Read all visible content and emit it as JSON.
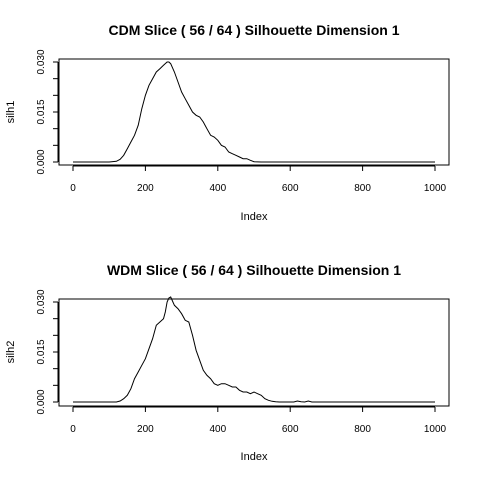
{
  "chart_data": [
    {
      "type": "line",
      "title": "CDM Slice ( 56 / 64 )  Silhouette Dimension 1",
      "xlabel": "Index",
      "ylabel": "silh1",
      "xlim": [
        0,
        1000
      ],
      "ylim": [
        0,
        0.03
      ],
      "xticks": [
        "0",
        "200",
        "400",
        "600",
        "800",
        "1000"
      ],
      "yticks": [
        "0.000",
        "0.015",
        "0.030"
      ],
      "x": [
        0,
        100,
        120,
        130,
        140,
        150,
        160,
        170,
        180,
        190,
        200,
        210,
        220,
        230,
        240,
        250,
        260,
        265,
        270,
        280,
        290,
        300,
        310,
        320,
        330,
        340,
        350,
        360,
        370,
        380,
        390,
        400,
        410,
        420,
        430,
        440,
        450,
        460,
        470,
        480,
        490,
        500,
        520,
        600,
        700,
        800,
        900,
        1000
      ],
      "y": [
        0,
        0,
        0.0002,
        0.0008,
        0.002,
        0.004,
        0.006,
        0.008,
        0.011,
        0.016,
        0.02,
        0.023,
        0.025,
        0.027,
        0.028,
        0.029,
        0.03,
        0.03,
        0.0295,
        0.027,
        0.024,
        0.021,
        0.019,
        0.017,
        0.015,
        0.014,
        0.0135,
        0.012,
        0.01,
        0.008,
        0.0075,
        0.0065,
        0.005,
        0.0045,
        0.003,
        0.0025,
        0.002,
        0.0015,
        0.001,
        0.001,
        0.0005,
        0.0001,
        0,
        0,
        0,
        0,
        0,
        0
      ]
    },
    {
      "type": "line",
      "title": "WDM Slice ( 56 / 64 )  Silhouette Dimension 1",
      "xlabel": "Index",
      "ylabel": "silh2",
      "xlim": [
        0,
        1000
      ],
      "ylim": [
        0,
        0.03
      ],
      "xticks": [
        "0",
        "200",
        "400",
        "600",
        "800",
        "1000"
      ],
      "yticks": [
        "0.000",
        "0.015",
        "0.030"
      ],
      "x": [
        0,
        120,
        130,
        140,
        150,
        160,
        170,
        180,
        190,
        200,
        210,
        220,
        230,
        240,
        250,
        255,
        260,
        265,
        270,
        280,
        290,
        300,
        310,
        320,
        330,
        340,
        350,
        360,
        370,
        380,
        390,
        400,
        410,
        420,
        430,
        440,
        450,
        460,
        470,
        480,
        490,
        500,
        510,
        520,
        530,
        540,
        550,
        560,
        570,
        580,
        590,
        600,
        610,
        620,
        630,
        640,
        650,
        660,
        700,
        800,
        900,
        1000
      ],
      "y": [
        0,
        0,
        0.0003,
        0.001,
        0.002,
        0.004,
        0.007,
        0.009,
        0.011,
        0.013,
        0.016,
        0.019,
        0.023,
        0.024,
        0.025,
        0.027,
        0.03,
        0.0312,
        0.0315,
        0.029,
        0.028,
        0.0265,
        0.0245,
        0.024,
        0.02,
        0.0155,
        0.0125,
        0.0095,
        0.008,
        0.007,
        0.0055,
        0.005,
        0.0055,
        0.0055,
        0.005,
        0.0045,
        0.0045,
        0.0035,
        0.003,
        0.003,
        0.0025,
        0.003,
        0.0025,
        0.002,
        0.001,
        0.0005,
        0.0002,
        0.0001,
        0.0,
        0.0,
        0.0,
        0.0,
        0.0,
        0.0003,
        0.0001,
        0.0,
        0.0003,
        0.0,
        0,
        0,
        0,
        0
      ]
    }
  ]
}
